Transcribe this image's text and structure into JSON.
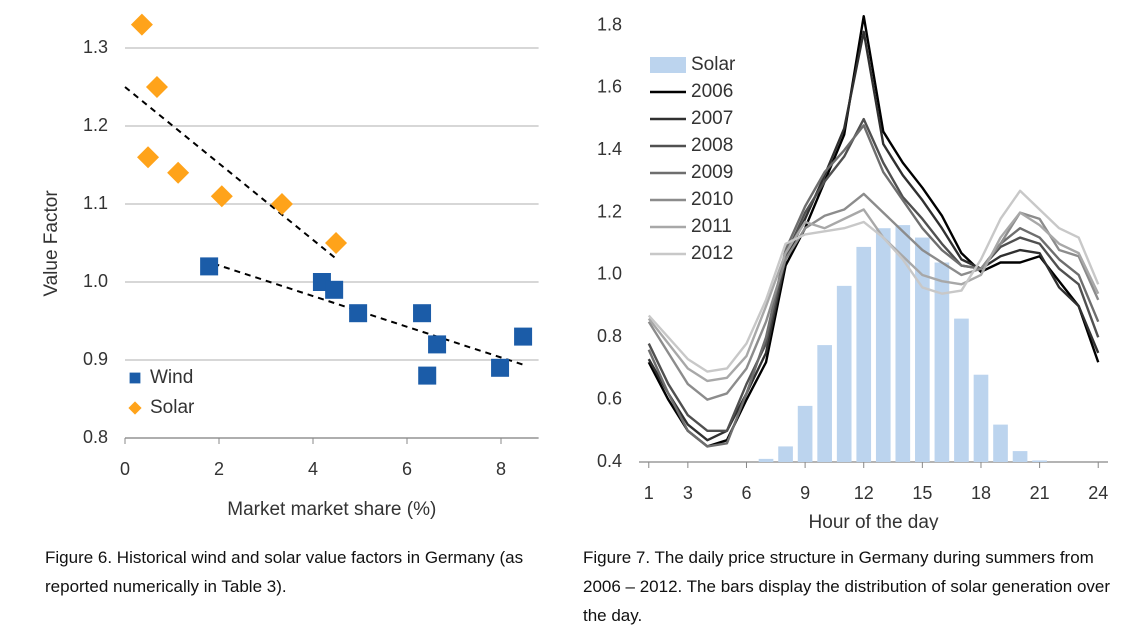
{
  "chart_data": [
    {
      "type": "scatter",
      "xlabel": "Market market share (%)",
      "ylabel": "Value Factor",
      "xlim": [
        0,
        8.8
      ],
      "xticks": [
        0,
        2,
        4,
        6,
        8
      ],
      "ylim": [
        0.8,
        1.35
      ],
      "yticks": [
        0.8,
        0.9,
        {
          "value": 1,
          "label": "1.0"
        },
        1.1,
        1.2,
        1.3
      ],
      "grid": true,
      "legend": "lower left",
      "series": [
        {
          "name": "Wind",
          "color": "#1b5ca8",
          "marker": "square",
          "x": [
            1.79,
            4.19,
            4.45,
            4.96,
            6.32,
            6.43,
            6.64,
            7.98,
            8.47
          ],
          "values": [
            1.02,
            1.0,
            0.99,
            0.96,
            0.96,
            0.88,
            0.92,
            0.89,
            0.93
          ],
          "trendline": {
            "x": [
              1.66,
              8.47
            ],
            "y": [
              1.028,
              0.894
            ]
          }
        },
        {
          "name": "Solar",
          "color": "#ffa31a",
          "marker": "diamond",
          "x": [
            0.36,
            0.68,
            0.49,
            1.13,
            2.06,
            3.34,
            4.49
          ],
          "values": [
            1.33,
            1.25,
            1.16,
            1.14,
            1.11,
            1.1,
            1.05
          ],
          "trendline": {
            "x": [
              0,
              4.49
            ],
            "y": [
              1.25,
              1.03
            ]
          }
        }
      ],
      "caption": "Figure 6. Historical wind and solar value factors in Germany (as reported numerically in Table 3)."
    },
    {
      "type": "line",
      "xlabel": "Hour of the day",
      "x": [
        1,
        2,
        3,
        4,
        5,
        6,
        7,
        8,
        9,
        10,
        11,
        12,
        13,
        14,
        15,
        16,
        17,
        18,
        19,
        20,
        21,
        22,
        23,
        24
      ],
      "xlim": [
        0.5,
        24.5
      ],
      "xticks": [
        1,
        3,
        6,
        9,
        12,
        15,
        18,
        21,
        24
      ],
      "ylim": [
        0.4,
        1.85
      ],
      "yticks": [
        0.4,
        0.6,
        0.8,
        {
          "value": 1,
          "label": "1.0"
        },
        1.2,
        1.4,
        1.6,
        1.8
      ],
      "grid": false,
      "legend": "upper left",
      "series": [
        {
          "name": "Solar",
          "type": "bar",
          "color": "#bcd4ee",
          "values": [
            0.4,
            0.4,
            0.4,
            0.4,
            0.4,
            0.4,
            0.41,
            0.45,
            0.58,
            0.775,
            0.965,
            1.09,
            1.15,
            1.16,
            1.12,
            1.04,
            0.86,
            0.68,
            0.52,
            0.435,
            0.405,
            0.4,
            0.4,
            0.4
          ]
        },
        {
          "name": "2006",
          "color": "#000000",
          "values": [
            0.72,
            0.6,
            0.5,
            0.45,
            0.47,
            0.6,
            0.72,
            1.03,
            1.15,
            1.3,
            1.45,
            1.83,
            1.46,
            1.36,
            1.28,
            1.19,
            1.07,
            1.01,
            1.04,
            1.04,
            1.06,
            0.98,
            0.9,
            0.72
          ]
        },
        {
          "name": "2007",
          "color": "#303030",
          "values": [
            0.73,
            0.62,
            0.52,
            0.47,
            0.5,
            0.62,
            0.75,
            1.05,
            1.18,
            1.32,
            1.47,
            1.78,
            1.42,
            1.32,
            1.24,
            1.15,
            1.05,
            1.02,
            1.06,
            1.08,
            1.07,
            0.96,
            0.9,
            0.75
          ]
        },
        {
          "name": "2008",
          "color": "#505050",
          "values": [
            0.78,
            0.65,
            0.55,
            0.5,
            0.5,
            0.65,
            0.78,
            1.06,
            1.2,
            1.3,
            1.38,
            1.5,
            1.36,
            1.25,
            1.18,
            1.1,
            1.03,
            1.02,
            1.09,
            1.12,
            1.1,
            1.02,
            0.97,
            0.8
          ]
        },
        {
          "name": "2009",
          "color": "#6e6e6e",
          "values": [
            0.76,
            0.62,
            0.5,
            0.45,
            0.46,
            0.62,
            0.8,
            1.08,
            1.22,
            1.33,
            1.4,
            1.48,
            1.33,
            1.24,
            1.15,
            1.08,
            1.03,
            1.02,
            1.1,
            1.15,
            1.12,
            1.05,
            1.0,
            0.85
          ]
        },
        {
          "name": "2010",
          "color": "#8c8c8c",
          "values": [
            0.85,
            0.75,
            0.65,
            0.6,
            0.62,
            0.7,
            0.85,
            1.05,
            1.15,
            1.19,
            1.21,
            1.26,
            1.2,
            1.14,
            1.08,
            1.04,
            1.0,
            1.02,
            1.1,
            1.2,
            1.18,
            1.08,
            1.06,
            0.92
          ]
        },
        {
          "name": "2011",
          "color": "#a8a8a8",
          "values": [
            0.86,
            0.78,
            0.7,
            0.66,
            0.67,
            0.74,
            0.9,
            1.07,
            1.17,
            1.15,
            1.18,
            1.21,
            1.12,
            1.06,
            1.0,
            0.98,
            0.97,
            1.0,
            1.12,
            1.2,
            1.16,
            1.1,
            1.07,
            0.94
          ]
        },
        {
          "name": "2012",
          "color": "#c8c8c8",
          "values": [
            0.87,
            0.8,
            0.73,
            0.69,
            0.7,
            0.78,
            0.92,
            1.1,
            1.13,
            1.14,
            1.15,
            1.17,
            1.12,
            1.05,
            0.96,
            0.94,
            0.95,
            1.05,
            1.18,
            1.27,
            1.21,
            1.15,
            1.12,
            0.97
          ]
        }
      ],
      "caption": "Figure 7. The daily price structure in Germany during summers from 2006 – 2012. The bars display the distribution of solar generation over the day."
    }
  ]
}
